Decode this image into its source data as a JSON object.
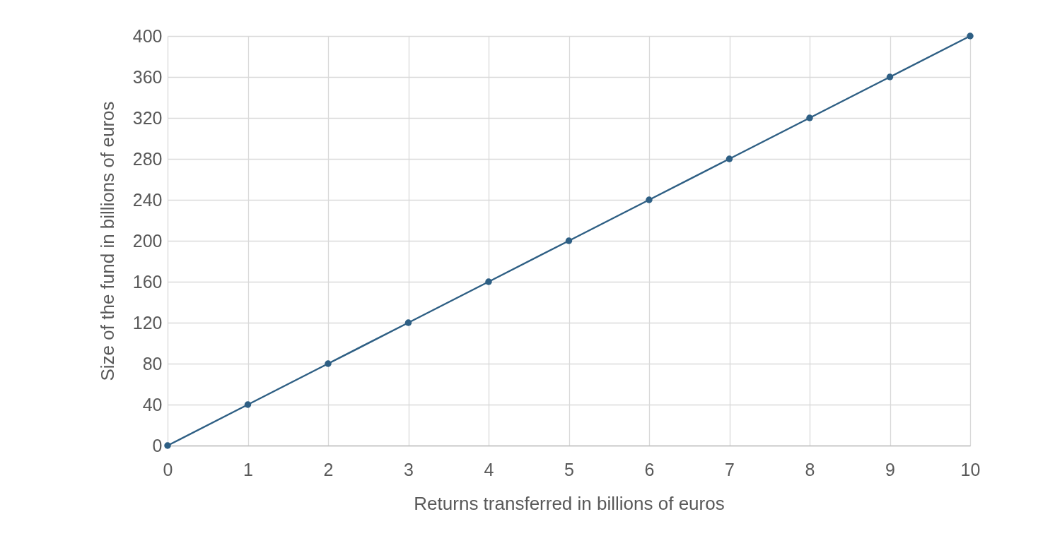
{
  "chart_data": {
    "type": "line",
    "xlabel": "Returns transferred in billions of euros",
    "ylabel": "Size of the fund in billions of euros",
    "x": [
      0,
      1,
      2,
      3,
      4,
      5,
      6,
      7,
      8,
      9,
      10
    ],
    "series": [
      {
        "color": "#2e5f84",
        "values": [
          0,
          40,
          80,
          120,
          160,
          200,
          240,
          280,
          320,
          360,
          400
        ]
      }
    ],
    "xlim": [
      0,
      10
    ],
    "xticks": [
      0,
      1,
      2,
      3,
      4,
      5,
      6,
      7,
      8,
      9,
      10
    ],
    "ylim": [
      0,
      400
    ],
    "yticks": [
      0,
      40,
      80,
      120,
      160,
      200,
      240,
      280,
      320,
      360,
      400
    ],
    "grid": true,
    "marker": "circle",
    "line_style": "solid"
  }
}
